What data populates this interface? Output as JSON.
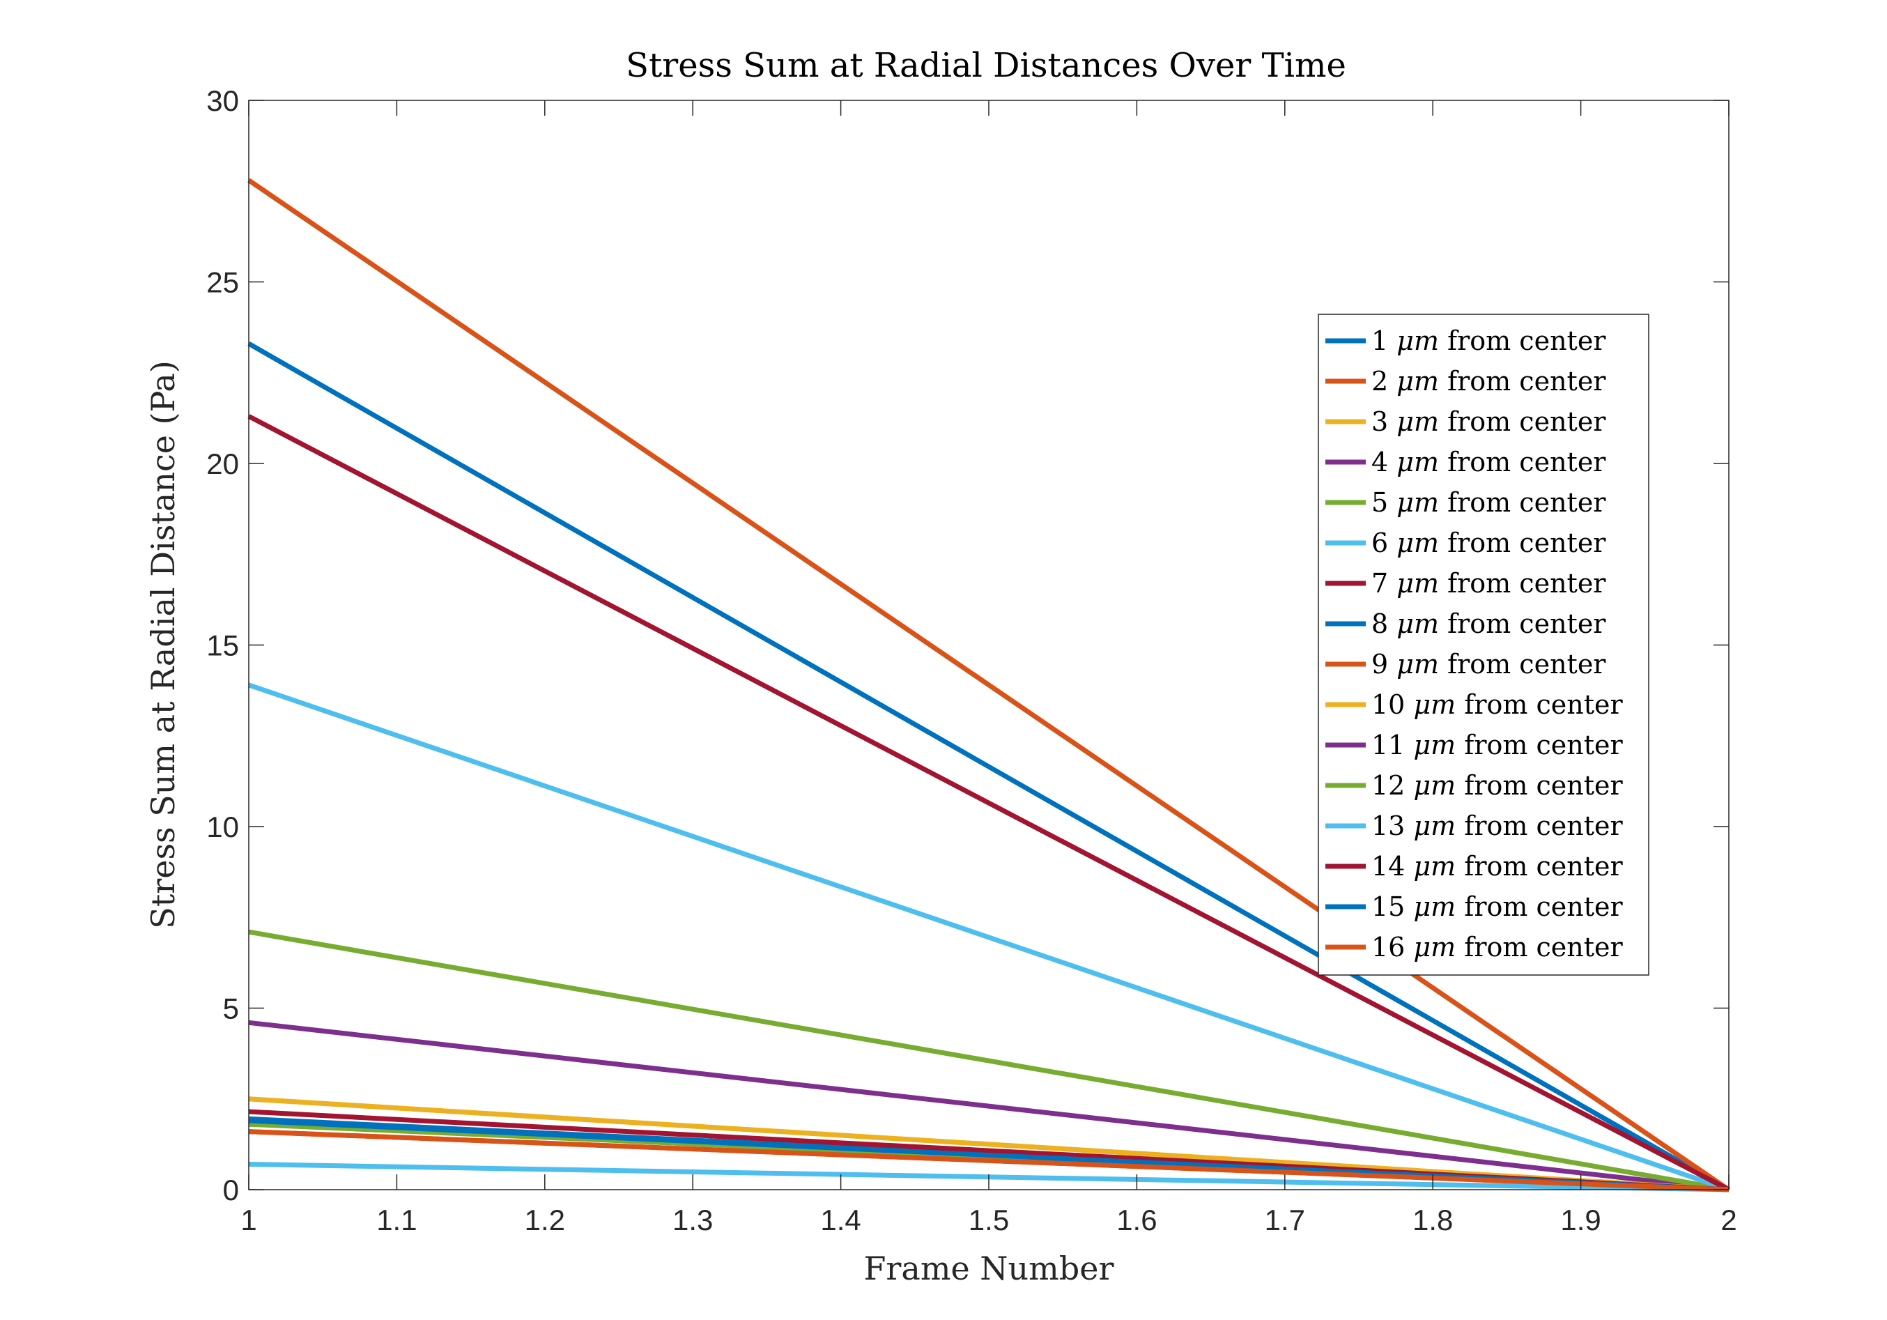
{
  "chart_data": {
    "type": "line",
    "title": "Stress Sum at Radial Distances Over Time",
    "xlabel": "Frame Number",
    "ylabel": "Stress Sum at Radial Distance (Pa)",
    "xlim": [
      1,
      2
    ],
    "ylim": [
      0,
      30
    ],
    "xticks": [
      "1",
      "1.1",
      "1.2",
      "1.3",
      "1.4",
      "1.5",
      "1.6",
      "1.7",
      "1.8",
      "1.9",
      "2"
    ],
    "yticks": [
      "0",
      "5",
      "10",
      "15",
      "20",
      "25",
      "30"
    ],
    "grid": false,
    "legend_position": "right",
    "x": [
      1,
      2
    ],
    "series": [
      {
        "name": "1 μm from center",
        "values": [
          23.3,
          0
        ],
        "color": "#0072BD"
      },
      {
        "name": "2 μm from center",
        "values": [
          27.8,
          0
        ],
        "color": "#D95319"
      },
      {
        "name": "3 μm from center",
        "values": [
          2.5,
          0
        ],
        "color": "#EDB120"
      },
      {
        "name": "4 μm from center",
        "values": [
          4.6,
          0
        ],
        "color": "#7E2F8E"
      },
      {
        "name": "5 μm from center",
        "values": [
          7.1,
          0
        ],
        "color": "#77AC30"
      },
      {
        "name": "6 μm from center",
        "values": [
          13.9,
          0
        ],
        "color": "#4DBEEE"
      },
      {
        "name": "7 μm from center",
        "values": [
          21.3,
          0
        ],
        "color": "#A2142F"
      },
      {
        "name": "8 μm from center",
        "values": [
          1.95,
          0
        ],
        "color": "#0072BD"
      },
      {
        "name": "9 μm from center",
        "values": [
          1.6,
          0
        ],
        "color": "#D95319"
      },
      {
        "name": "10 μm from center",
        "values": [
          2.5,
          0
        ],
        "color": "#EDB120"
      },
      {
        "name": "11 μm from center",
        "values": [
          1.85,
          0
        ],
        "color": "#7E2F8E"
      },
      {
        "name": "12 μm from center",
        "values": [
          1.8,
          0
        ],
        "color": "#77AC30"
      },
      {
        "name": "13 μm from center",
        "values": [
          0.7,
          0
        ],
        "color": "#4DBEEE"
      },
      {
        "name": "14 μm from center",
        "values": [
          2.15,
          0
        ],
        "color": "#A2142F"
      },
      {
        "name": "15 μm from center",
        "values": [
          1.9,
          0
        ],
        "color": "#0072BD"
      },
      {
        "name": "16 μm from center",
        "values": [
          1.6,
          0
        ],
        "color": "#D95319"
      }
    ]
  }
}
